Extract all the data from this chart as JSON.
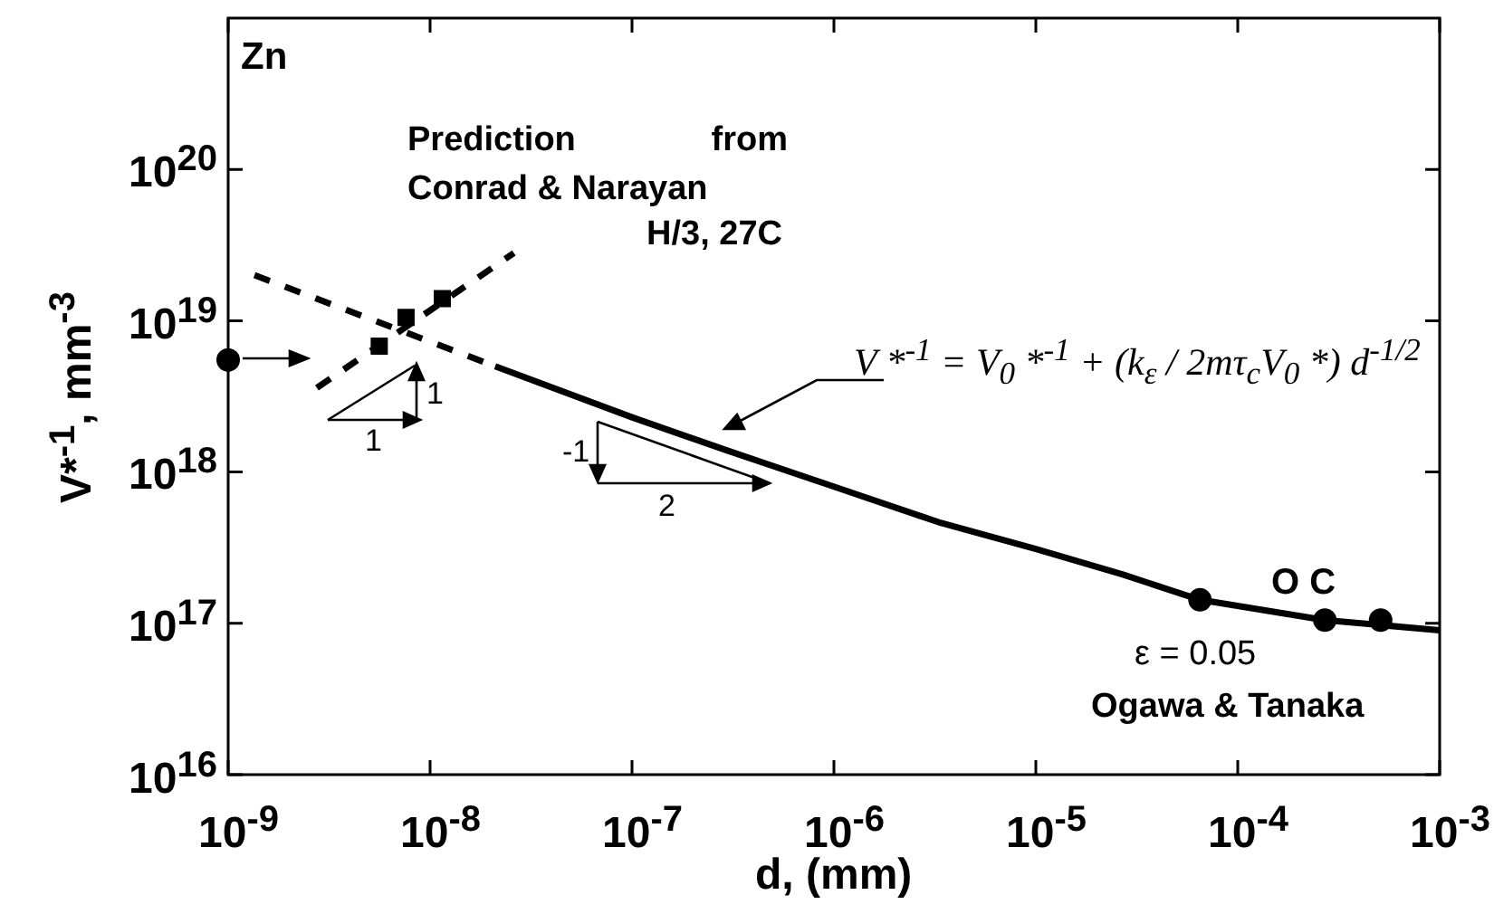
{
  "chart_data": {
    "type": "line",
    "xlabel": "d, (mm)",
    "ylabel": "V*$^{-1}$, mm$^{-3}$",
    "log": "xy",
    "grid": false,
    "legend": false,
    "xlim": [
      1e-09,
      0.001
    ],
    "ylim": [
      1e+16,
      1e+21
    ],
    "xticks": [
      {
        "value": 1e-09,
        "label": "10$^{-9}$"
      },
      {
        "value": 1e-08,
        "label": "10$^{-8}$"
      },
      {
        "value": 1e-07,
        "label": "10$^{-7}$"
      },
      {
        "value": 1e-06,
        "label": "10$^{-6}$"
      },
      {
        "value": 1e-05,
        "label": "10$^{-5}$"
      },
      {
        "value": 0.0001,
        "label": "10$^{-4}$"
      },
      {
        "value": 0.001,
        "label": "10$^{-3}$"
      }
    ],
    "yticks": [
      {
        "value": 1e+16,
        "label": "10$^{16}$"
      },
      {
        "value": 1e+17,
        "label": "10$^{17}$"
      },
      {
        "value": 1e+18,
        "label": "10$^{18}$"
      },
      {
        "value": 1e+19,
        "label": "10$^{19}$"
      },
      {
        "value": 1e+20,
        "label": "10$^{20}$"
      }
    ],
    "series": [
      {
        "color": "#000000",
        "line_style": "solid",
        "marker": "none",
        "x": [
          2.1e-08,
          1e-07,
          2.9e-07,
          1e-06,
          3.4e-06,
          1e-05,
          2.7e-05,
          6.5e-05,
          0.00027,
          0.001
        ],
        "values": [
          5e+18,
          2.3e+18,
          1.4e+18,
          8e+17,
          4.6e+17,
          3.1e+17,
          2.1e+17,
          1.43e+17,
          1.05e+17,
          9e+16
        ]
      },
      {
        "type": "line",
        "color": "#000000",
        "line_style": "dashed",
        "marker": "none",
        "x": [
          1.35e-09,
          2.1e-08
        ],
        "values": [
          2e+19,
          5e+18
        ]
      },
      {
        "type": "line",
        "color": "#000000",
        "line_style": "dashed",
        "marker": "none",
        "x": [
          2.75e-09,
          2.6e-08
        ],
        "values": [
          3.6e+18,
          2.8e+19
        ]
      },
      {
        "type": "scatter",
        "color": "#000000",
        "marker": "square",
        "x": [
          5.6e-09,
          7.6e-09,
          1.15e-08
        ],
        "values": [
          6.8e+18,
          1.05e+19,
          1.4e+19
        ]
      },
      {
        "type": "scatter",
        "color": "#000000",
        "marker": "circle",
        "x": [
          1e-09,
          6.5e-05,
          0.00027,
          0.00051
        ],
        "values": [
          5.5e+18,
          1.43e+17,
          1.05e+17,
          1.05e+17
        ]
      }
    ],
    "annotations": [
      "Zn",
      "Prediction from",
      "Conrad & Narayan",
      "H/3, 27C",
      "V *$^{-1}$ = V$_{0}$ *$^{-1}$ + (k$_{ε}$ / 2mτ$_{c}$V$_{0}$ *) d$^{-1/2}$",
      "1",
      "1",
      "-1",
      "2",
      "O C",
      "ε = 0.05",
      "Ogawa & Tanaka"
    ]
  }
}
